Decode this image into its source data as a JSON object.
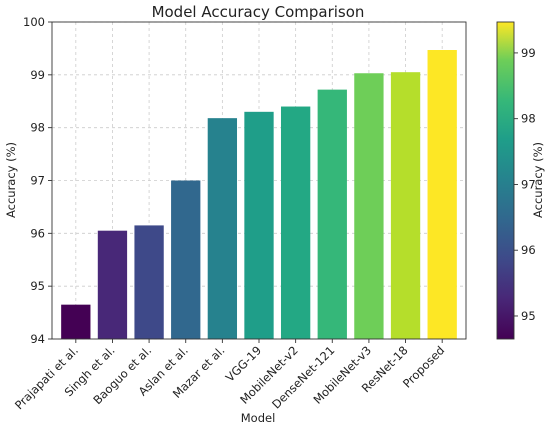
{
  "chart_data": {
    "type": "bar",
    "title": "Model Accuracy Comparison",
    "xlabel": "Model",
    "ylabel": "Accuracy (%)",
    "ylim": [
      94,
      100
    ],
    "yticks": [
      94,
      95,
      96,
      97,
      98,
      99,
      100
    ],
    "grid": true,
    "colormap": "viridis",
    "categories": [
      "Prajapati et al.",
      "Singh et al.",
      "Baoguo et al.",
      "Aslan et al.",
      "Mazar et al.",
      "VGG-19",
      "MobileNet-v2",
      "DenseNet-121",
      "MobileNet-v3",
      "ResNet-18",
      "Proposed"
    ],
    "values": [
      94.65,
      96.05,
      96.15,
      97.0,
      98.18,
      98.3,
      98.4,
      98.72,
      99.03,
      99.05,
      99.47
    ],
    "colors": [
      "#440154",
      "#482878",
      "#3e4989",
      "#31688e",
      "#26828e",
      "#1f9e89",
      "#23a884",
      "#35b779",
      "#6ece58",
      "#b5de2b",
      "#fde725"
    ],
    "colorbar": {
      "label": "Accuracy (%)",
      "range": [
        94.65,
        99.47
      ],
      "ticks": [
        95,
        96,
        97,
        98,
        99
      ]
    }
  }
}
